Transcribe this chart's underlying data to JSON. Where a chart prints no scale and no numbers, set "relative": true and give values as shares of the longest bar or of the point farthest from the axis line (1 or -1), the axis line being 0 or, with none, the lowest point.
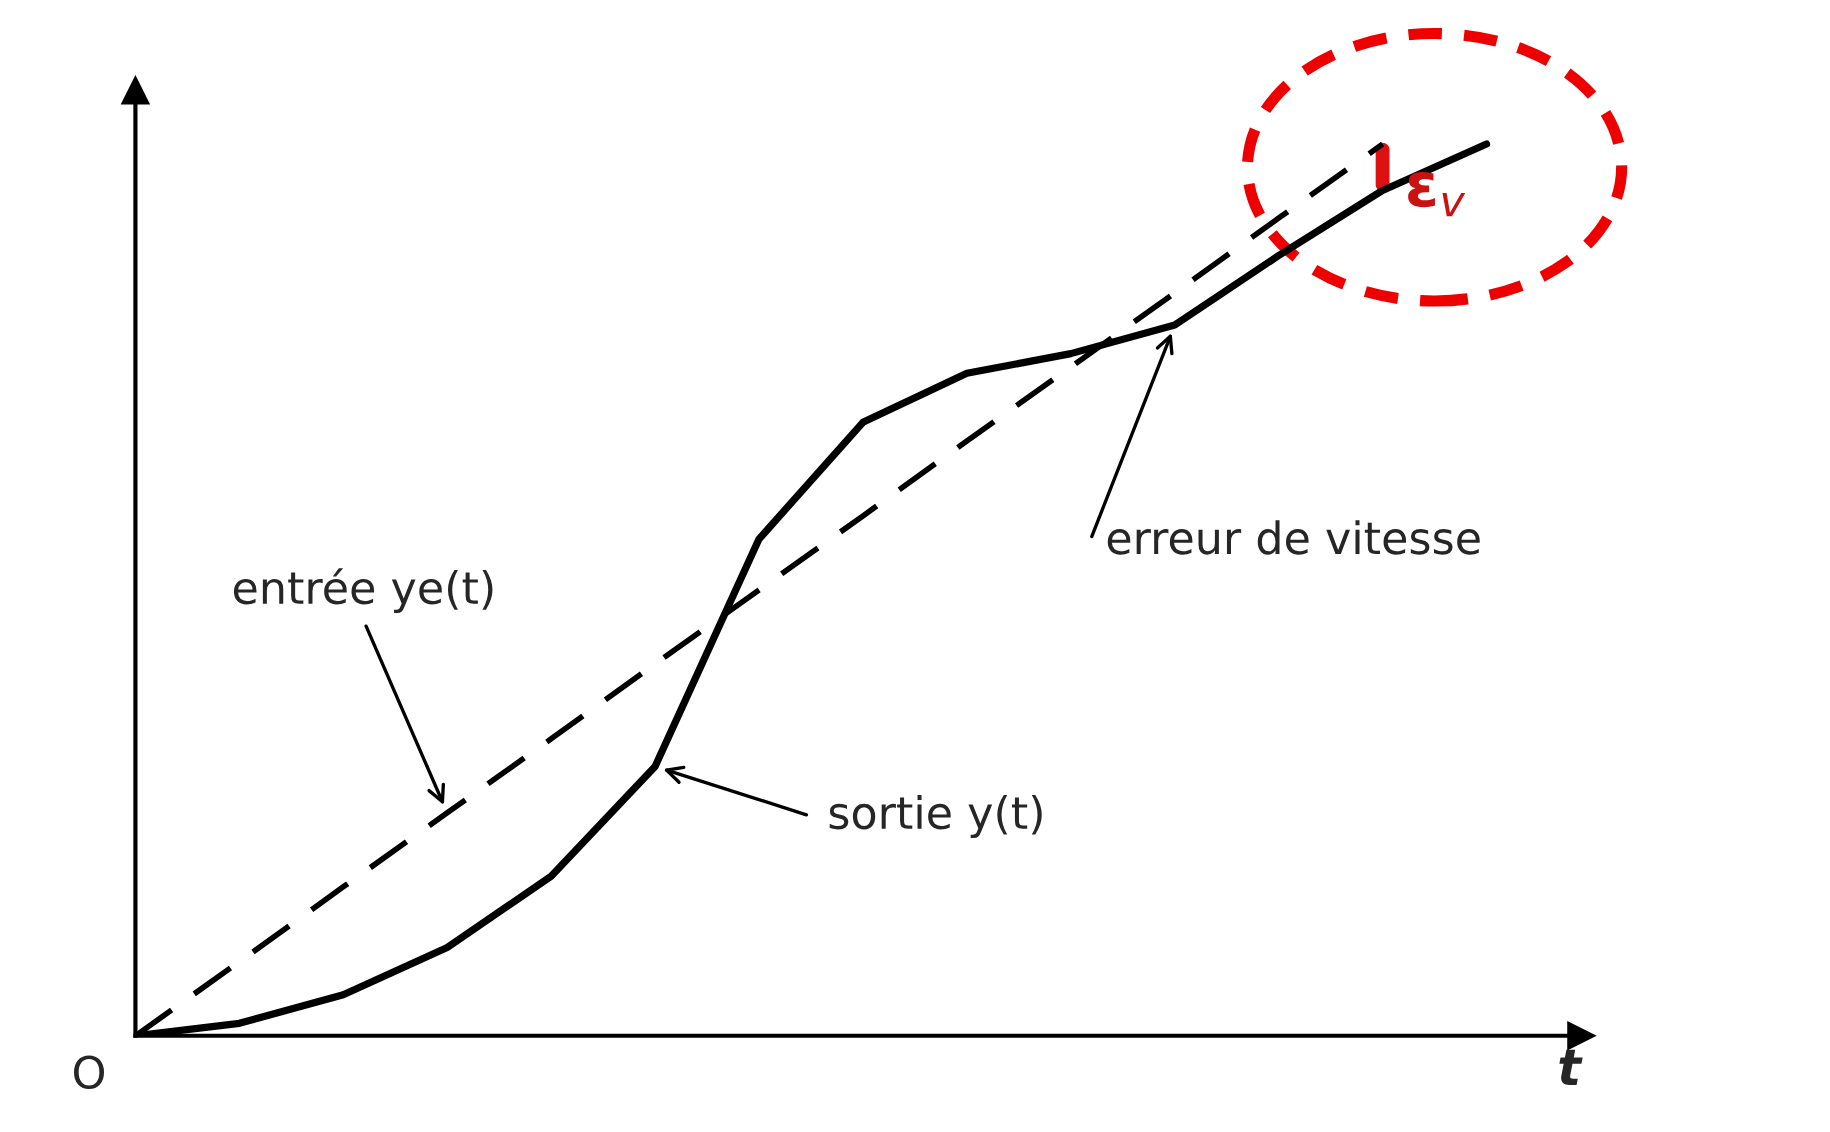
{
  "chart_data": {
    "type": "line",
    "relative": true,
    "xlabel": "t",
    "tick_labels": false,
    "grid": false,
    "legend": false,
    "categories": [
      null,
      null,
      null,
      null,
      null,
      null,
      null,
      null,
      null,
      null,
      null,
      null,
      null,
      null
    ],
    "series": [
      {
        "color": "#000000",
        "line_style": "dashed",
        "values": [
          0,
          0.083,
          0.167,
          0.25,
          0.333,
          0.417,
          0.5,
          0.583,
          0.667,
          0.75,
          0.833,
          0.917,
          1.0,
          null
        ]
      },
      {
        "color": "#000000",
        "line_style": "solid",
        "values": [
          0,
          0.014,
          0.046,
          0.099,
          0.179,
          0.302,
          0.557,
          0.688,
          0.743,
          0.765,
          0.797,
          0.875,
          0.948,
          1.0
        ]
      }
    ],
    "annotations": [
      "entrée ye(t)",
      "sortie y(t)",
      "erreur de vitesse",
      "ε$_{v}$",
      "O"
    ]
  }
}
